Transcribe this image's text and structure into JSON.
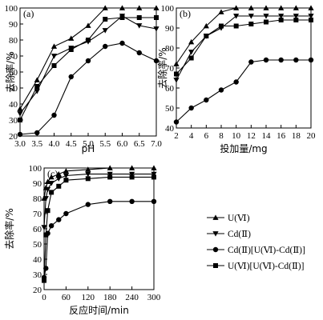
{
  "chart_data": [
    {
      "type": "line",
      "panel_label": "(a)",
      "xlabel": "pH",
      "ylabel": "去除率/%",
      "xlim": [
        3.0,
        7.0
      ],
      "ylim": [
        20,
        100
      ],
      "xticks": [
        "3.0",
        "3.5",
        "4.0",
        "4.5",
        "5.0",
        "5.5",
        "6.0",
        "6.5",
        "7.0"
      ],
      "yticks": [
        "20",
        "30",
        "40",
        "50",
        "60",
        "70",
        "80",
        "90",
        "100"
      ],
      "x": [
        3.0,
        3.5,
        4.0,
        4.5,
        5.0,
        5.5,
        6.0,
        6.5,
        7.0
      ],
      "series": [
        {
          "name": "U(Ⅵ)",
          "values": [
            37,
            55,
            76,
            81,
            89,
            100,
            100,
            100,
            100
          ]
        },
        {
          "name": "Cd(Ⅱ)",
          "values": [
            34,
            48,
            70,
            75,
            79,
            86,
            95,
            89,
            87
          ]
        },
        {
          "name": "Cd(Ⅱ)[U(Ⅵ)-Cd(Ⅱ)]",
          "values": [
            21,
            22,
            33,
            57,
            67,
            76,
            78,
            72,
            67
          ]
        },
        {
          "name": "U(Ⅵ)[U(Ⅵ)-Cd(Ⅱ)]",
          "values": [
            30,
            51,
            64,
            74,
            80,
            93,
            94,
            94,
            94
          ]
        }
      ]
    },
    {
      "type": "line",
      "panel_label": "(b)",
      "xlabel": "投加量/mg",
      "ylabel": "去除率/%",
      "xlim": [
        2,
        20
      ],
      "ylim": [
        40,
        100
      ],
      "xticks": [
        "2",
        "4",
        "6",
        "8",
        "10",
        "12",
        "14",
        "16",
        "18",
        "20"
      ],
      "yticks": [
        "40",
        "50",
        "60",
        "70",
        "80",
        "90",
        "100"
      ],
      "x": [
        2,
        4,
        6,
        8,
        10,
        12,
        14,
        16,
        18,
        20
      ],
      "series": [
        {
          "name": "U(Ⅵ)",
          "values": [
            72,
            83,
            91,
            98,
            100,
            100,
            100,
            100,
            100,
            100
          ]
        },
        {
          "name": "Cd(Ⅱ)",
          "values": [
            64,
            78,
            86,
            90,
            96,
            96,
            96,
            96,
            96,
            96
          ]
        },
        {
          "name": "Cd(Ⅱ)[U(Ⅵ)-Cd(Ⅱ)]",
          "values": [
            43,
            50,
            54,
            59,
            63,
            73,
            74,
            74,
            74,
            74
          ]
        },
        {
          "name": "U(Ⅵ)[U(Ⅵ)-Cd(Ⅱ)]",
          "values": [
            67,
            75,
            86,
            91,
            91,
            92,
            93,
            94,
            94,
            94
          ]
        }
      ]
    },
    {
      "type": "line",
      "panel_label": "(c)",
      "xlabel": "反应时间/min",
      "ylabel": "去除率/%",
      "xlim": [
        0,
        300
      ],
      "ylim": [
        20,
        100
      ],
      "xticks": [
        "0",
        "60",
        "120",
        "180",
        "240",
        "300"
      ],
      "yticks": [
        "20",
        "30",
        "40",
        "50",
        "60",
        "70",
        "80",
        "90",
        "100"
      ],
      "x": [
        0,
        5,
        10,
        20,
        40,
        60,
        120,
        180,
        240,
        300
      ],
      "series": [
        {
          "name": "U(Ⅵ)",
          "values": [
            80,
            87,
            91,
            94,
            96,
            98,
            99,
            100,
            100,
            100
          ]
        },
        {
          "name": "Cd(Ⅱ)",
          "values": [
            61,
            80,
            86,
            90,
            93,
            95,
            96,
            96,
            96,
            96
          ]
        },
        {
          "name": "Cd(Ⅱ)[U(Ⅵ)-Cd(Ⅱ)]",
          "values": [
            28,
            34,
            57,
            62,
            66,
            70,
            76,
            78,
            78,
            78
          ]
        },
        {
          "name": "U(Ⅵ)[U(Ⅵ)-Cd(Ⅱ)]",
          "values": [
            26,
            56,
            72,
            84,
            88,
            92,
            93,
            94,
            94,
            94
          ]
        }
      ]
    }
  ],
  "legend": [
    {
      "label": "U(Ⅵ)",
      "marker": "triangle-up"
    },
    {
      "label": "Cd(Ⅱ)",
      "marker": "triangle-down"
    },
    {
      "label": "Cd(Ⅱ)[U(Ⅵ)-Cd(Ⅱ)]",
      "marker": "circle"
    },
    {
      "label": "U(Ⅵ)[U(Ⅵ)-Cd(Ⅱ)]",
      "marker": "square"
    }
  ],
  "colors": {
    "ink": "#000000",
    "background": "#ffffff"
  }
}
